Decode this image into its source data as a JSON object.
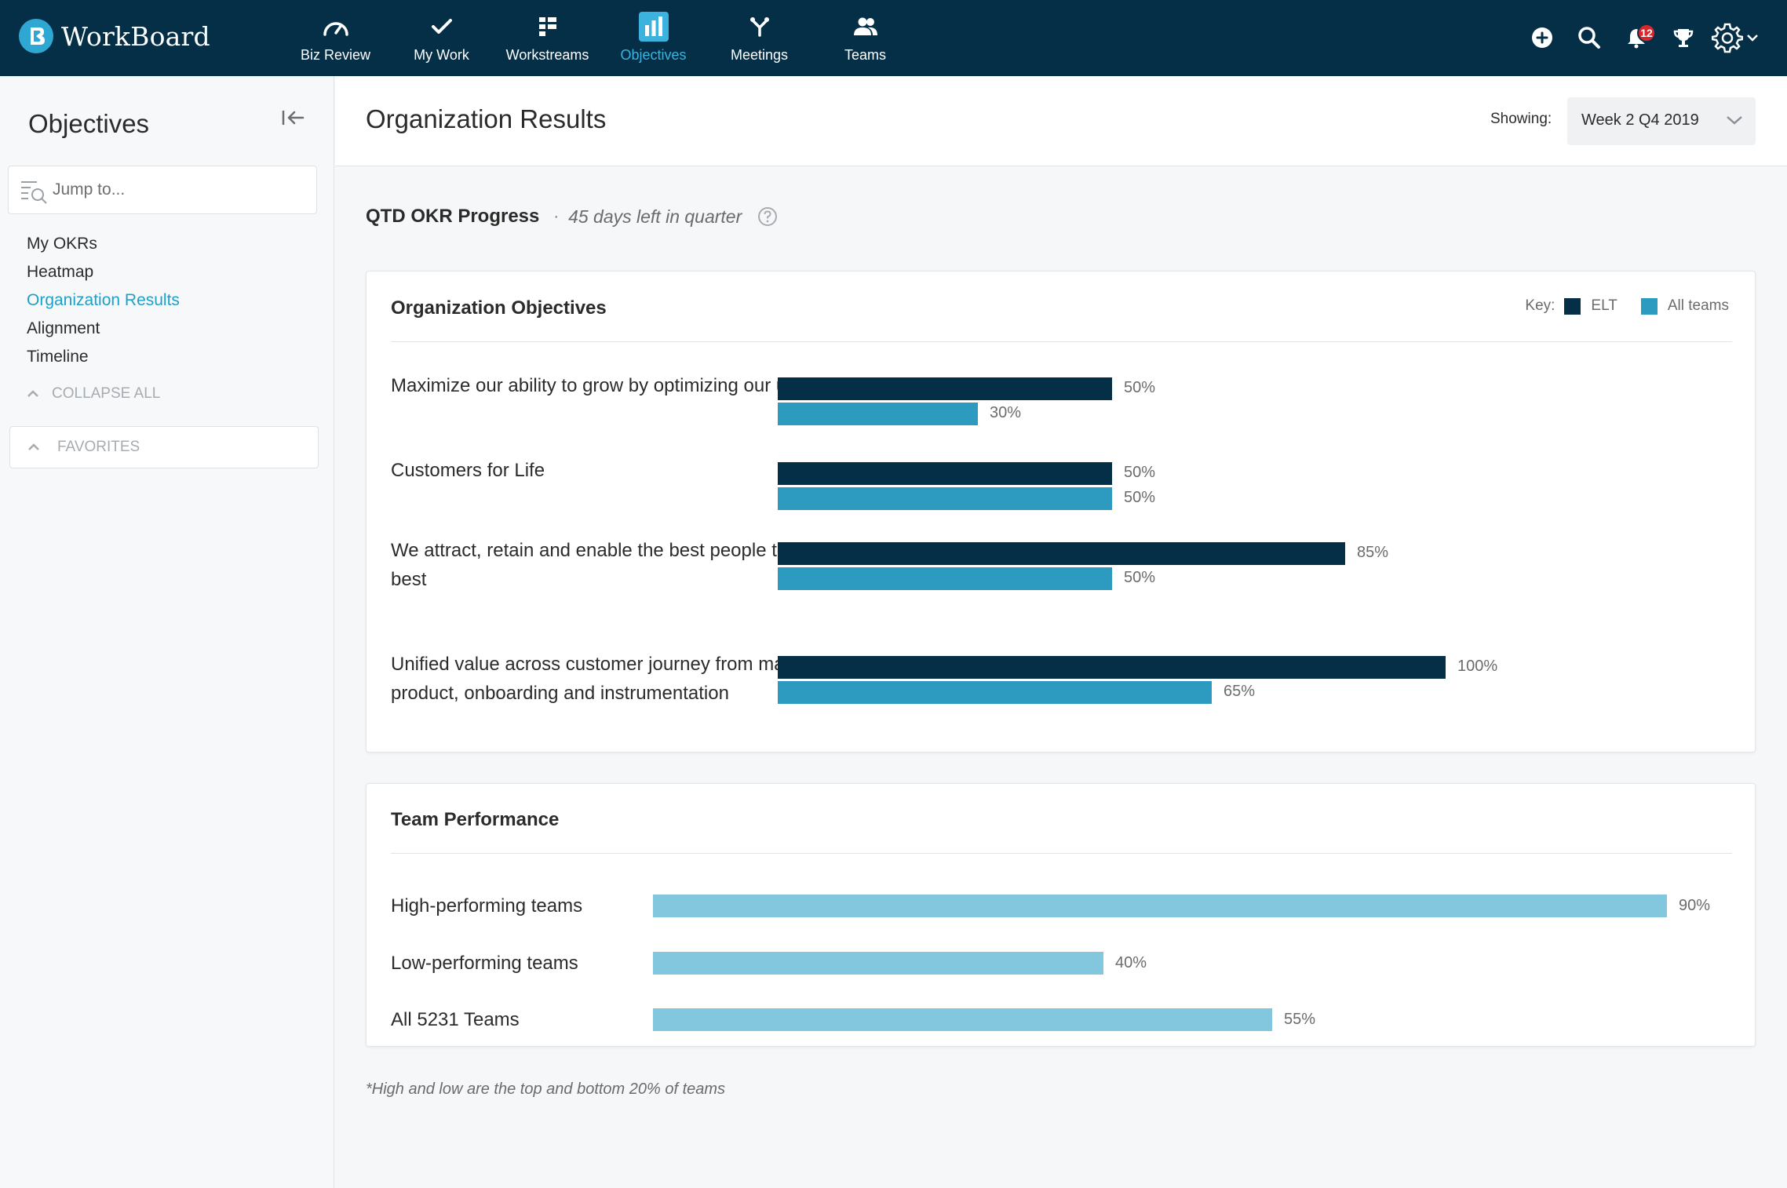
{
  "app": {
    "name": "WorkBoard"
  },
  "nav": {
    "items": [
      {
        "label": "Biz Review",
        "icon": "gauge-icon",
        "active": false
      },
      {
        "label": "My Work",
        "icon": "check-icon",
        "active": false
      },
      {
        "label": "Workstreams",
        "icon": "workstreams-icon",
        "active": false
      },
      {
        "label": "Objectives",
        "icon": "bar-chart-icon",
        "active": true
      },
      {
        "label": "Meetings",
        "icon": "meetings-icon",
        "active": false
      },
      {
        "label": "Teams",
        "icon": "people-icon",
        "active": false
      }
    ],
    "notifications_count": "12"
  },
  "sidebar": {
    "title": "Objectives",
    "search_placeholder": "Jump to...",
    "links": [
      {
        "label": "My OKRs",
        "active": false
      },
      {
        "label": "Heatmap",
        "active": false
      },
      {
        "label": "Organization Results",
        "active": true
      },
      {
        "label": "Alignment",
        "active": false
      },
      {
        "label": "Timeline",
        "active": false
      }
    ],
    "collapse_all": "COLLAPSE ALL",
    "favorites": "FAVORITES"
  },
  "page": {
    "title": "Organization Results",
    "showing_label": "Showing:",
    "showing_value": "Week 2 Q4 2019"
  },
  "progress": {
    "title": "QTD OKR Progress",
    "separator": "·",
    "days_left": "45 days left in quarter"
  },
  "colors": {
    "elt": "#042f47",
    "all_teams": "#2d9ac0",
    "team_perf": "#82c7de"
  },
  "org_objectives": {
    "title": "Organization Objectives",
    "key_label": "Key:",
    "legend_elt": "ELT",
    "legend_all": "All teams"
  },
  "team_performance": {
    "title": "Team Performance"
  },
  "chart_data": [
    {
      "type": "bar",
      "title": "Organization Objectives",
      "categories": [
        "Maximize our ability to grow by optimizing our unit economics",
        "Customers for Life",
        "We attract, retain and enable the best people to operate at their best",
        "Unified value across customer journey from marketing, sales, product, onboarding and instrumentation"
      ],
      "series": [
        {
          "name": "ELT",
          "values": [
            50,
            50,
            85,
            100
          ]
        },
        {
          "name": "All teams",
          "values": [
            30,
            50,
            50,
            65
          ]
        }
      ],
      "ylim": [
        0,
        100
      ],
      "legend": "top-right"
    },
    {
      "type": "bar",
      "title": "Team Performance",
      "categories": [
        "High-performing teams",
        "Low-performing teams",
        "All 5231 Teams"
      ],
      "values": [
        90,
        40,
        55
      ],
      "ylim": [
        0,
        100
      ]
    }
  ],
  "footnote": "*High and low are the top and bottom 20% of teams"
}
